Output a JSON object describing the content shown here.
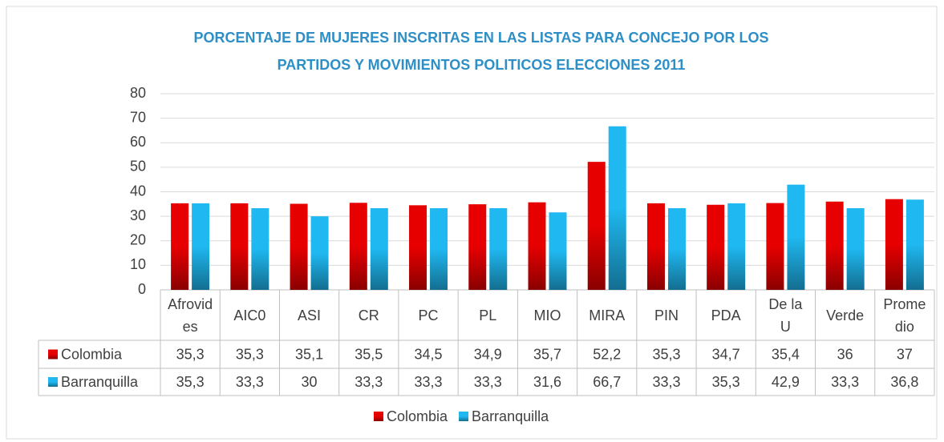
{
  "chart_data": {
    "type": "bar",
    "title": "PORCENTAJE DE MUJERES INSCRITAS EN LAS LISTAS PARA CONCEJO POR LOS PARTIDOS Y MOVIMIENTOS POLITICOS ELECCIONES 2011",
    "categories": [
      "Afrovides",
      "AIC0",
      "ASI",
      "CR",
      "PC",
      "PL",
      "MIO",
      "MIRA",
      "PIN",
      "PDA",
      "De la U",
      "Verde",
      "Promedio"
    ],
    "series": [
      {
        "name": "Colombia",
        "color": "#e60000",
        "values": [
          35.3,
          35.3,
          35.1,
          35.5,
          34.5,
          34.9,
          35.7,
          52.2,
          35.3,
          34.7,
          35.4,
          36,
          37
        ],
        "value_labels": [
          "35,3",
          "35,3",
          "35,1",
          "35,5",
          "34,5",
          "34,9",
          "35,7",
          "52,2",
          "35,3",
          "34,7",
          "35,4",
          "36",
          "37"
        ]
      },
      {
        "name": "Barranquilla",
        "color": "#1fb8f0",
        "values": [
          35.3,
          33.3,
          30,
          33.3,
          33.3,
          33.3,
          31.6,
          66.7,
          33.3,
          35.3,
          42.9,
          33.3,
          36.8
        ],
        "value_labels": [
          "35,3",
          "33,3",
          "30",
          "33,3",
          "33,3",
          "33,3",
          "31,6",
          "66,7",
          "33,3",
          "35,3",
          "42,9",
          "33,3",
          "36,8"
        ]
      }
    ],
    "ylim": [
      0,
      80
    ],
    "yticks": [
      0,
      10,
      20,
      30,
      40,
      50,
      60,
      70,
      80
    ],
    "grid": true,
    "legend": "bottom"
  }
}
